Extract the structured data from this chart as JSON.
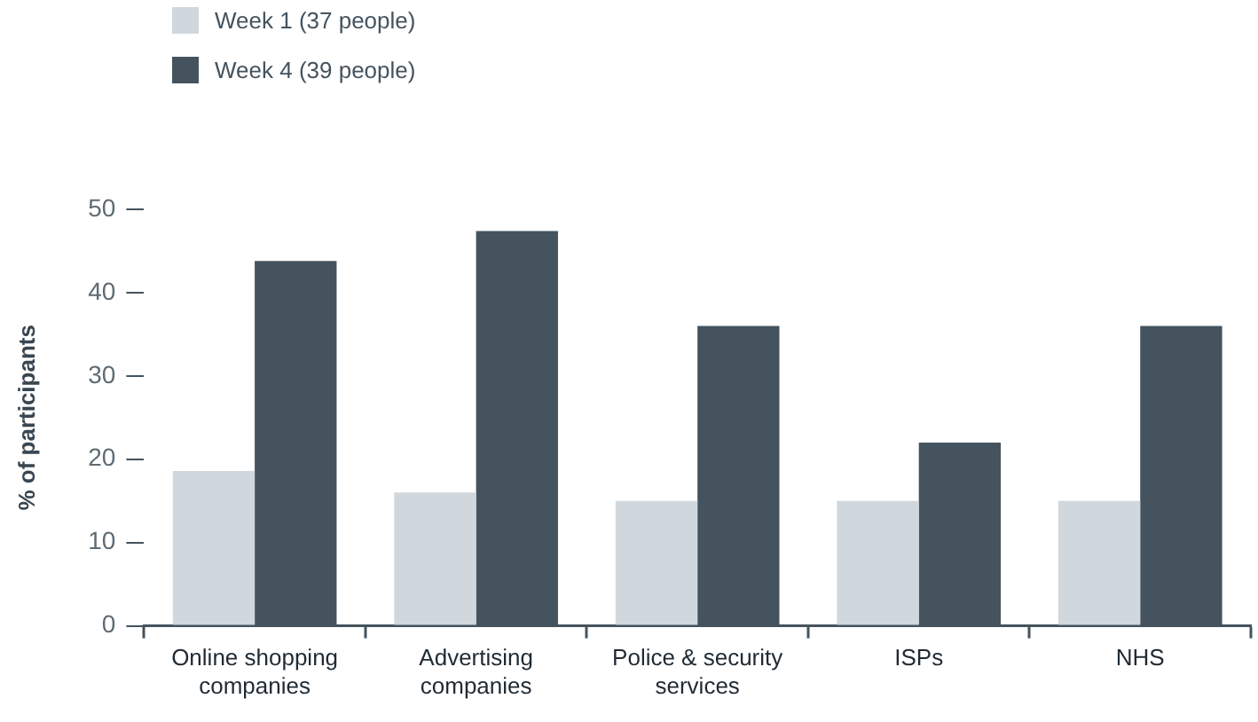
{
  "chart_data": {
    "type": "bar",
    "ylabel": "% of participants",
    "categories": [
      "Online shopping companies",
      "Advertising companies",
      "Police & security services",
      "ISPs",
      "NHS"
    ],
    "series": [
      {
        "name": "Week 1 (37 people)",
        "color": "#d0d7dd",
        "values": [
          18.6,
          16,
          15,
          15,
          15
        ]
      },
      {
        "name": "Week 4 (39 people)",
        "color": "#44535e",
        "values": [
          43.8,
          47.4,
          36,
          22,
          36
        ]
      }
    ],
    "ylim": [
      0,
      50
    ],
    "yticks": [
      0,
      10,
      20,
      30,
      40,
      50
    ],
    "grid": false,
    "legend": "top left"
  }
}
